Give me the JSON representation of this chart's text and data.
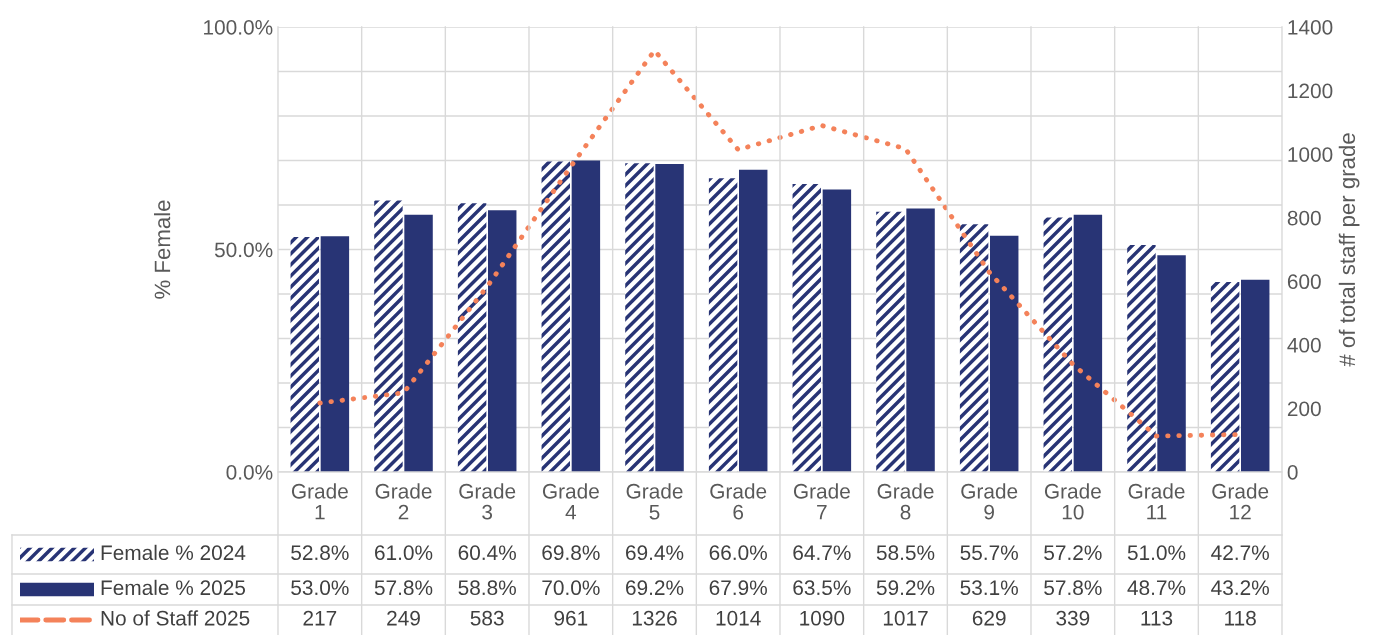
{
  "chart_data": {
    "type": "bar",
    "ylabel": "% Female",
    "y2label": "# of total staff per grade",
    "categories": [
      "Grade 1",
      "Grade 2",
      "Grade 3",
      "Grade 4",
      "Grade 5",
      "Grade 6",
      "Grade 7",
      "Grade 8",
      "Grade 9",
      "Grade 10",
      "Grade 11",
      "Grade 12"
    ],
    "series": [
      {
        "name": "Female % 2024",
        "color": "#283475",
        "values": [
          52.8,
          61.0,
          60.4,
          69.8,
          69.4,
          66.0,
          64.7,
          58.5,
          55.7,
          57.2,
          51.0,
          42.7
        ],
        "value_labels": [
          "52.8%",
          "61.0%",
          "60.4%",
          "69.8%",
          "69.4%",
          "66.0%",
          "64.7%",
          "58.5%",
          "55.7%",
          "57.2%",
          "51.0%",
          "42.7%"
        ]
      },
      {
        "name": "Female % 2025",
        "color": "#283475",
        "values": [
          53.0,
          57.8,
          58.8,
          70.0,
          69.2,
          67.9,
          63.5,
          59.2,
          53.1,
          57.8,
          48.7,
          43.2
        ],
        "value_labels": [
          "53.0%",
          "57.8%",
          "58.8%",
          "70.0%",
          "69.2%",
          "67.9%",
          "63.5%",
          "59.2%",
          "53.1%",
          "57.8%",
          "48.7%",
          "43.2%"
        ]
      },
      {
        "name": "No of Staff 2025",
        "type": "line",
        "axis": "y2",
        "color": "#f4825a",
        "line_style": "dotted",
        "values": [
          217,
          249,
          583,
          961,
          1326,
          1014,
          1090,
          1017,
          629,
          339,
          113,
          118
        ],
        "value_labels": [
          "217",
          "249",
          "583",
          "961",
          "1326",
          "1014",
          "1090",
          "1017",
          "629",
          "339",
          "113",
          "118"
        ]
      }
    ],
    "ylim": [
      0,
      100
    ],
    "yticks": [
      {
        "value": 0,
        "label": "0.0%"
      },
      {
        "value": 10,
        "label": null
      },
      {
        "value": 20,
        "label": null
      },
      {
        "value": 30,
        "label": null
      },
      {
        "value": 40,
        "label": null
      },
      {
        "value": 50,
        "label": "50.0%"
      },
      {
        "value": 60,
        "label": null
      },
      {
        "value": 70,
        "label": null
      },
      {
        "value": 80,
        "label": null
      },
      {
        "value": 90,
        "label": null
      },
      {
        "value": 100,
        "label": "100.0%"
      }
    ],
    "y2lim": [
      0,
      1400
    ],
    "y2ticks": [
      0,
      200,
      400,
      600,
      800,
      1000,
      1200,
      1400
    ],
    "grid": "y",
    "legend": "bottom left"
  }
}
